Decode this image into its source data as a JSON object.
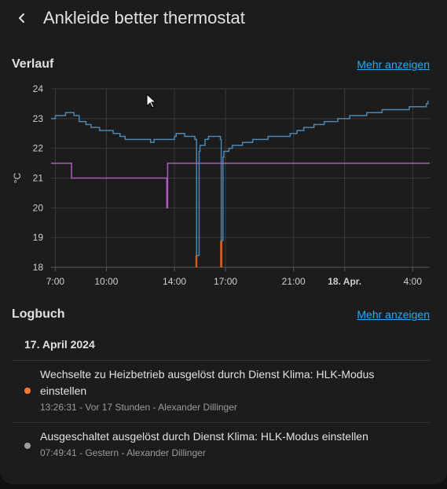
{
  "header": {
    "title": "Ankleide better thermostat"
  },
  "history": {
    "section_title": "Verlauf",
    "more_label": "Mehr anzeigen",
    "chart_data": {
      "type": "line",
      "ylabel": "°C",
      "ylim": [
        18,
        24
      ],
      "yticks": [
        18,
        19,
        20,
        21,
        22,
        23,
        24
      ],
      "x_range_hours": [
        6.75,
        29.0
      ],
      "xticks": [
        {
          "t": 7,
          "label": "7:00",
          "bold": false
        },
        {
          "t": 10,
          "label": "10:00",
          "bold": false
        },
        {
          "t": 14,
          "label": "14:00",
          "bold": false
        },
        {
          "t": 17,
          "label": "17:00",
          "bold": false
        },
        {
          "t": 21,
          "label": "21:00",
          "bold": false
        },
        {
          "t": 24,
          "label": "18. Apr.",
          "bold": true
        },
        {
          "t": 28,
          "label": "4:00",
          "bold": false
        }
      ],
      "grid": true,
      "series": [
        {
          "color": "#4a86b4",
          "step": true,
          "points": [
            [
              6.75,
              23.0
            ],
            [
              7.0,
              23.1
            ],
            [
              7.3,
              23.1
            ],
            [
              7.6,
              23.2
            ],
            [
              8.1,
              23.1
            ],
            [
              8.4,
              22.9
            ],
            [
              8.8,
              22.8
            ],
            [
              9.1,
              22.7
            ],
            [
              9.6,
              22.6
            ],
            [
              10.4,
              22.5
            ],
            [
              10.8,
              22.4
            ],
            [
              11.1,
              22.3
            ],
            [
              12.6,
              22.2
            ],
            [
              12.8,
              22.3
            ],
            [
              14.0,
              22.4
            ],
            [
              14.1,
              22.5
            ],
            [
              14.6,
              22.4
            ],
            [
              15.2,
              22.3
            ],
            [
              15.3,
              18.4
            ],
            [
              15.45,
              21.9
            ],
            [
              15.5,
              22.1
            ],
            [
              15.8,
              22.3
            ],
            [
              16.0,
              22.4
            ],
            [
              16.7,
              22.3
            ],
            [
              16.75,
              18.9
            ],
            [
              16.85,
              21.7
            ],
            [
              16.9,
              21.9
            ],
            [
              17.2,
              22.0
            ],
            [
              17.4,
              22.1
            ],
            [
              18.0,
              22.2
            ],
            [
              18.6,
              22.3
            ],
            [
              19.5,
              22.4
            ],
            [
              20.8,
              22.5
            ],
            [
              21.2,
              22.6
            ],
            [
              21.6,
              22.7
            ],
            [
              22.2,
              22.8
            ],
            [
              22.8,
              22.9
            ],
            [
              23.6,
              23.0
            ],
            [
              24.3,
              23.1
            ],
            [
              25.3,
              23.2
            ],
            [
              26.2,
              23.3
            ],
            [
              27.8,
              23.4
            ],
            [
              28.8,
              23.5
            ],
            [
              28.9,
              23.6
            ]
          ]
        },
        {
          "color": "#b259c2",
          "step": true,
          "points": [
            [
              6.75,
              21.5
            ],
            [
              7.95,
              21.5
            ],
            [
              7.95,
              21.0
            ],
            [
              13.55,
              21.0
            ],
            [
              13.55,
              20.0
            ],
            [
              13.6,
              21.5
            ],
            [
              29.0,
              21.5
            ]
          ]
        },
        {
          "color": "#d35f1e",
          "type": "spikes",
          "points": [
            [
              15.28,
              18.0,
              18.4
            ],
            [
              15.3,
              18.0,
              18.4
            ],
            [
              16.73,
              18.0,
              18.9
            ],
            [
              16.77,
              18.0,
              18.9
            ]
          ]
        }
      ]
    }
  },
  "logbook": {
    "section_title": "Logbuch",
    "more_label": "Mehr anzeigen",
    "date": "17. April 2024",
    "entries": [
      {
        "message": "Wechselte zu Heizbetrieb ausgelöst durch Dienst Klima: HLK-Modus einstellen",
        "time": "13:26:31",
        "relative": "Vor 17 Stunden",
        "user": "Alexander Dillinger",
        "dot_color": "#ff7a2f"
      },
      {
        "message": "Ausgeschaltet ausgelöst durch Dienst Klima: HLK-Modus einstellen",
        "time": "07:49:41",
        "relative": "Gestern",
        "user": "Alexander Dillinger",
        "dot_color": "#9e9e9e"
      }
    ]
  },
  "icons": {
    "back": "arrow-left-icon",
    "cursor": "mouse-pointer-icon"
  },
  "colors": {
    "accent": "#29a9f4",
    "background": "#1c1c1c"
  }
}
